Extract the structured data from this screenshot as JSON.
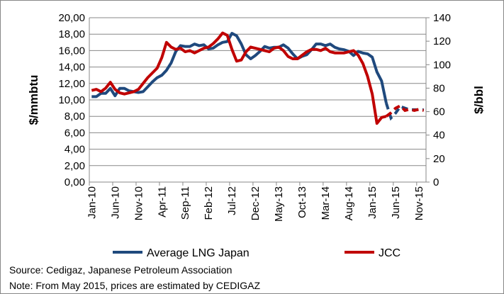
{
  "chart_data": {
    "type": "line",
    "left_axis": {
      "label": "$/mmbtu",
      "range": [
        0,
        20
      ],
      "ticks": [
        "0,00",
        "2,00",
        "4,00",
        "6,00",
        "8,00",
        "10,00",
        "12,00",
        "14,00",
        "16,00",
        "18,00",
        "20,00"
      ]
    },
    "right_axis": {
      "label": "$/bbl",
      "range": [
        0,
        140
      ],
      "ticks": [
        "0",
        "20",
        "40",
        "60",
        "80",
        "100",
        "120",
        "140"
      ]
    },
    "x_tick_labels": [
      "Jan-10",
      "Jun-10",
      "Nov-10",
      "Apr-11",
      "Sep-11",
      "Feb-12",
      "Jul-12",
      "Dec-12",
      "May-13",
      "Oct-13",
      "Mar-14",
      "Aug-14",
      "Jan-15",
      "Jun-15",
      "Nov-15"
    ],
    "months_start": "Jan-10",
    "months_count": 72,
    "estimated_from_index": 63,
    "grid": true,
    "legend_placement": "bottom",
    "series": [
      {
        "name": "Average LNG Japan",
        "axis": "left",
        "color": "#1F497D",
        "values": [
          10.4,
          10.4,
          10.8,
          10.8,
          11.4,
          10.5,
          11.4,
          11.4,
          11.1,
          11.0,
          10.9,
          11.0,
          11.6,
          12.2,
          12.7,
          13.0,
          13.6,
          14.5,
          15.9,
          16.6,
          16.5,
          16.5,
          16.8,
          16.6,
          16.7,
          16.2,
          16.3,
          16.7,
          17.0,
          17.1,
          18.1,
          17.8,
          16.8,
          15.5,
          15.0,
          15.4,
          15.9,
          16.5,
          16.3,
          16.4,
          16.4,
          16.7,
          16.3,
          15.6,
          15.0,
          15.3,
          15.5,
          16.1,
          16.8,
          16.8,
          16.6,
          16.8,
          16.4,
          16.2,
          16.1,
          15.9,
          15.4,
          15.9,
          15.7,
          15.6,
          15.2,
          13.4,
          12.3,
          9.6,
          7.8,
          8.4,
          9.2,
          9.0,
          8.8,
          8.8,
          8.8,
          8.8
        ]
      },
      {
        "name": "JCC",
        "axis": "right",
        "color": "#C00000",
        "values": [
          78,
          79,
          77,
          80,
          85,
          79,
          76,
          75,
          76,
          77,
          79,
          84,
          89,
          93,
          97,
          106,
          119,
          115,
          113,
          114,
          111,
          112,
          110,
          112,
          114,
          115,
          118,
          122,
          127,
          125,
          113,
          103,
          104,
          111,
          115,
          114,
          113,
          112,
          111,
          114,
          115,
          112,
          107,
          105,
          105,
          108,
          111,
          113,
          113,
          112,
          114,
          111,
          110,
          110,
          110,
          111,
          112,
          108,
          101,
          90,
          75,
          50,
          55,
          56,
          59,
          63,
          65,
          61,
          62,
          61,
          62,
          61
        ]
      }
    ]
  },
  "notes": {
    "source": "Source: Cedigaz, Japanese Petroleum Association",
    "note": "Note: From May 2015, prices are estimated by CEDIGAZ"
  }
}
